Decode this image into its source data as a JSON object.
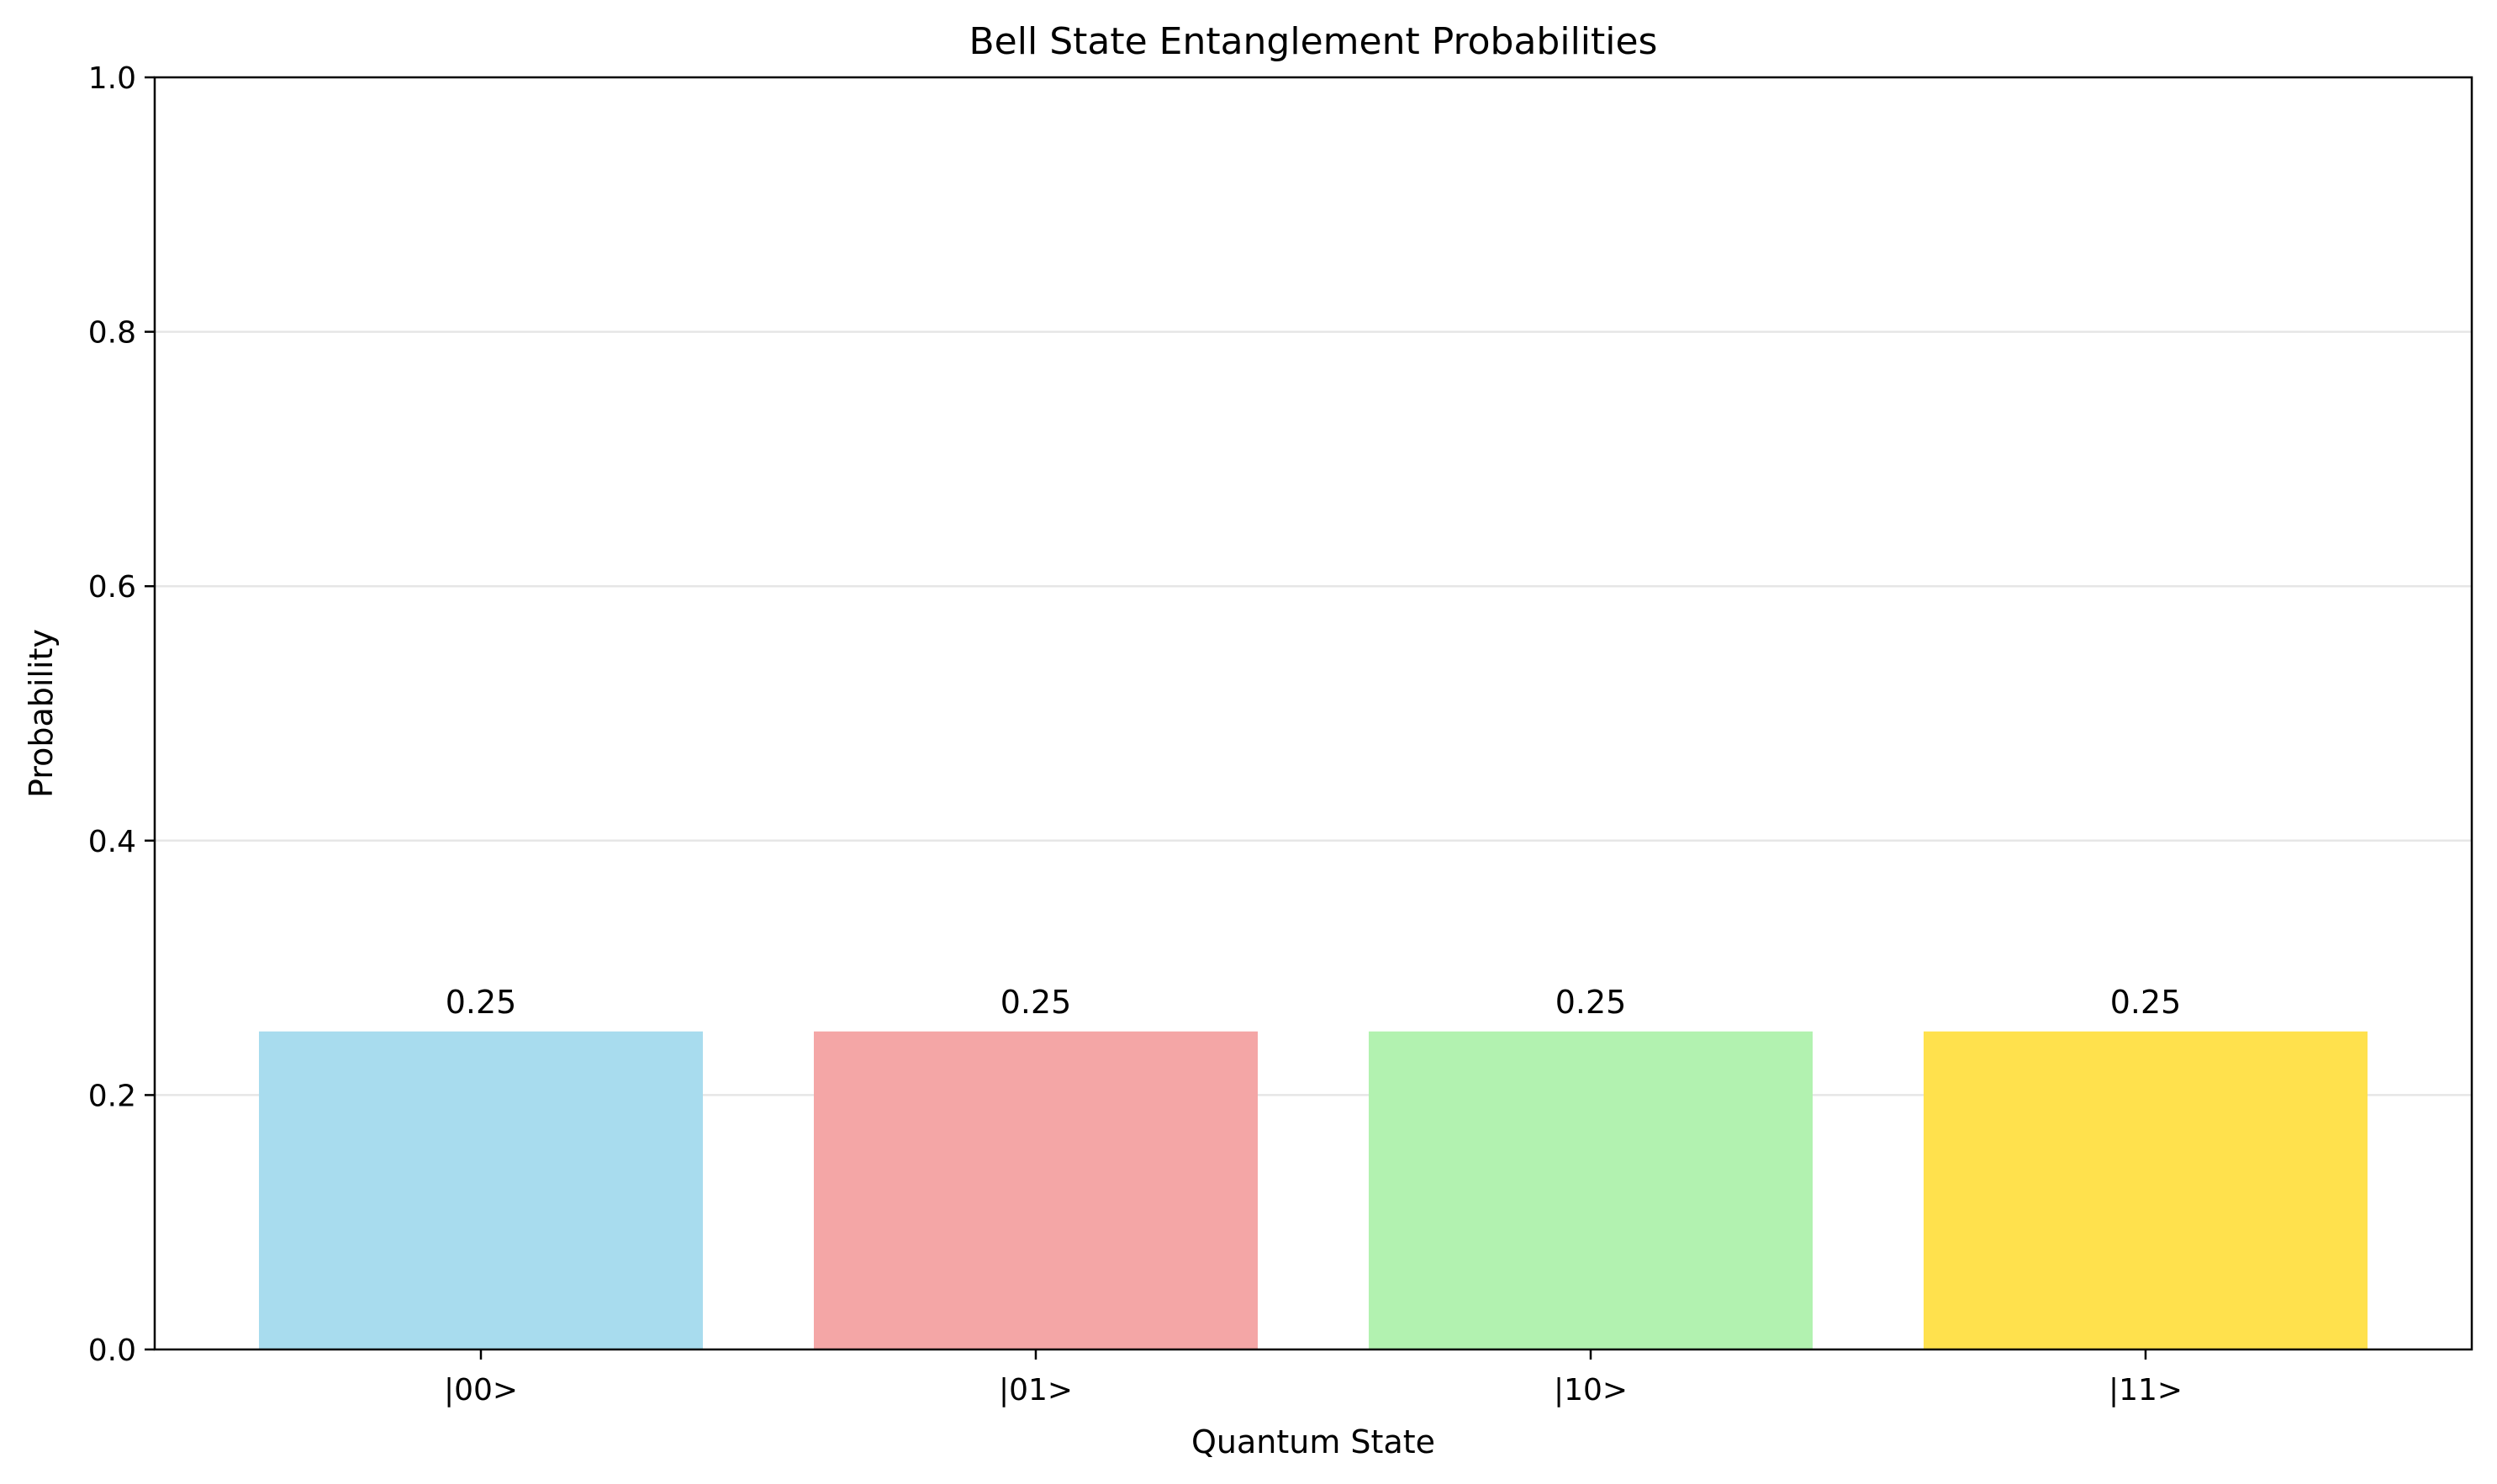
{
  "chart_data": {
    "type": "bar",
    "title": "Bell State Entanglement Probabilities",
    "xlabel": "Quantum State",
    "ylabel": "Probability",
    "categories": [
      "|00>",
      "|01>",
      "|10>",
      "|11>"
    ],
    "values": [
      0.25,
      0.25,
      0.25,
      0.25
    ],
    "value_labels": [
      "0.25",
      "0.25",
      "0.25",
      "0.25"
    ],
    "colors": [
      "#a8dcee",
      "#f4a6a6",
      "#b2f2b0",
      "#ffe14d"
    ],
    "ylim": [
      0,
      1.0
    ],
    "yticks": [
      0.0,
      0.2,
      0.4,
      0.6,
      0.8,
      1.0
    ],
    "ytick_labels": [
      "0.0",
      "0.2",
      "0.4",
      "0.6",
      "0.8",
      "1.0"
    ],
    "grid": "y",
    "grid_color": "#e6e6e6"
  }
}
